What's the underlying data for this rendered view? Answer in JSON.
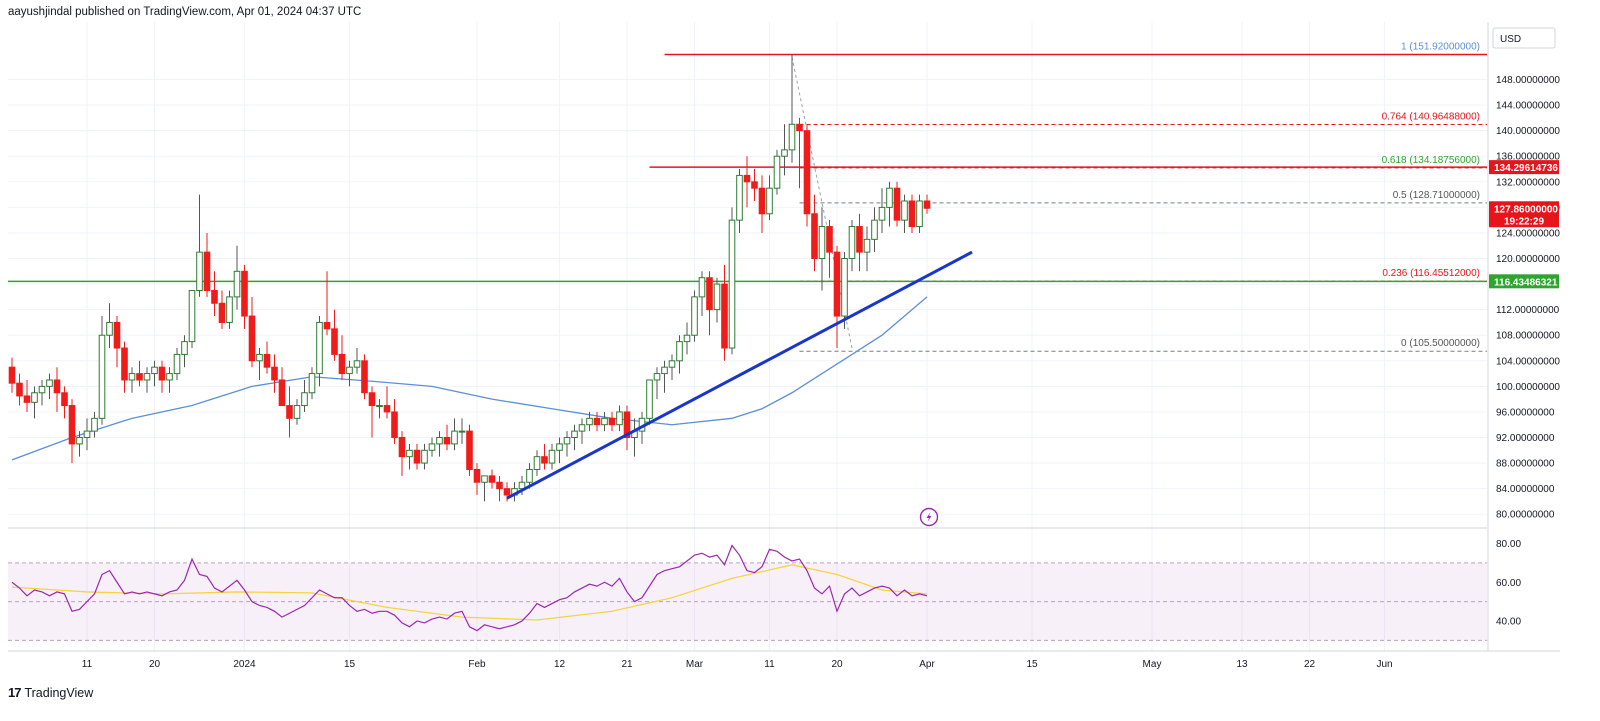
{
  "header": {
    "publisher_line": "aayushjindal published on TradingView.com, Apr 01, 2024 04:37 UTC"
  },
  "footer": {
    "brand": "TradingView",
    "logo_glyph": "17"
  },
  "colors": {
    "up": "#26a69a",
    "down": "#ef1c1c",
    "up_body": "#ffffff",
    "up_border": "#2e7d32",
    "ma": "#5b8fd9",
    "trendline": "#1a35cc",
    "support": "#2ea52e",
    "resistance": "#e8141c",
    "fib": "#e8141c",
    "rsi": "#9b27b0",
    "rsi_ma": "#f5d442",
    "rsi_band": "#9b27b0"
  },
  "price_axis": {
    "currency": "USD",
    "ticks": [
      "148.00000000",
      "144.00000000",
      "140.00000000",
      "136.00000000",
      "132.00000000",
      "128.00000000",
      "124.00000000",
      "120.00000000",
      "116.00000000",
      "112.00000000",
      "108.00000000",
      "104.00000000",
      "100.00000000",
      "96.00000000",
      "92.00000000",
      "88.00000000",
      "84.00000000",
      "80.00000000"
    ],
    "tags": [
      {
        "label": "134.29614736",
        "value": 134.29614736,
        "color": "#e8141c"
      },
      {
        "label": "127.86000000",
        "value": 127.86,
        "color": "#e8141c",
        "sub": "19:22:29"
      },
      {
        "label": "116.43486321",
        "value": 116.43486321,
        "color": "#2ea52e"
      }
    ]
  },
  "rsi_axis": {
    "ticks": [
      "80.00",
      "60.00",
      "40.00"
    ]
  },
  "time_axis": {
    "labels": [
      "11",
      "20",
      "2024",
      "15",
      "Feb",
      "12",
      "21",
      "Mar",
      "11",
      "20",
      "Apr",
      "15",
      "May",
      "13",
      "22",
      "Jun"
    ]
  },
  "chart_data": {
    "type": "candlestick",
    "price_range": [
      78,
      157
    ],
    "rsi_range": [
      25,
      87
    ],
    "dates": [
      "2023-12-01",
      "2023-12-02",
      "2023-12-03",
      "2023-12-04",
      "2023-12-05",
      "2023-12-06",
      "2023-12-07",
      "2023-12-08",
      "2023-12-09",
      "2023-12-10",
      "2023-12-11",
      "2023-12-12",
      "2023-12-13",
      "2023-12-14",
      "2023-12-15",
      "2023-12-16",
      "2023-12-17",
      "2023-12-18",
      "2023-12-19",
      "2023-12-20",
      "2023-12-21",
      "2023-12-22",
      "2023-12-23",
      "2023-12-24",
      "2023-12-25",
      "2023-12-26",
      "2023-12-27",
      "2023-12-28",
      "2023-12-29",
      "2023-12-30",
      "2023-12-31",
      "2024-01-01",
      "2024-01-02",
      "2024-01-03",
      "2024-01-04",
      "2024-01-05",
      "2024-01-06",
      "2024-01-07",
      "2024-01-08",
      "2024-01-09",
      "2024-01-10",
      "2024-01-11",
      "2024-01-12",
      "2024-01-13",
      "2024-01-14",
      "2024-01-15",
      "2024-01-16",
      "2024-01-17",
      "2024-01-18",
      "2024-01-19",
      "2024-01-20",
      "2024-01-21",
      "2024-01-22",
      "2024-01-23",
      "2024-01-24",
      "2024-01-25",
      "2024-01-26",
      "2024-01-27",
      "2024-01-28",
      "2024-01-29",
      "2024-01-30",
      "2024-01-31",
      "2024-02-01",
      "2024-02-02",
      "2024-02-03",
      "2024-02-04",
      "2024-02-05",
      "2024-02-06",
      "2024-02-07",
      "2024-02-08",
      "2024-02-09",
      "2024-02-10",
      "2024-02-11",
      "2024-02-12",
      "2024-02-13",
      "2024-02-14",
      "2024-02-15",
      "2024-02-16",
      "2024-02-17",
      "2024-02-18",
      "2024-02-19",
      "2024-02-20",
      "2024-02-21",
      "2024-02-22",
      "2024-02-23",
      "2024-02-24",
      "2024-02-25",
      "2024-02-26",
      "2024-02-27",
      "2024-02-28",
      "2024-02-29",
      "2024-03-01",
      "2024-03-02",
      "2024-03-03",
      "2024-03-04",
      "2024-03-05",
      "2024-03-06",
      "2024-03-07",
      "2024-03-08",
      "2024-03-09",
      "2024-03-10",
      "2024-03-11",
      "2024-03-12",
      "2024-03-13",
      "2024-03-14",
      "2024-03-15",
      "2024-03-16",
      "2024-03-17",
      "2024-03-18",
      "2024-03-19",
      "2024-03-20",
      "2024-03-21",
      "2024-03-22",
      "2024-03-23",
      "2024-03-24",
      "2024-03-25",
      "2024-03-26",
      "2024-03-27",
      "2024-03-28",
      "2024-03-29",
      "2024-03-30",
      "2024-03-31",
      "2024-04-01"
    ],
    "candles": [
      [
        103,
        104.5,
        99,
        100.5
      ],
      [
        100.5,
        102,
        97,
        98.5
      ],
      [
        98.5,
        101,
        96,
        97.5
      ],
      [
        97.5,
        100,
        95,
        99
      ],
      [
        99,
        101,
        97,
        100
      ],
      [
        100,
        102,
        98,
        101
      ],
      [
        101,
        103,
        96,
        99
      ],
      [
        99,
        100,
        95,
        97
      ],
      [
        97,
        98,
        88,
        91
      ],
      [
        91,
        93,
        89,
        92
      ],
      [
        92,
        95,
        90,
        93
      ],
      [
        93,
        96,
        92,
        95
      ],
      [
        95,
        111,
        94,
        108
      ],
      [
        108,
        113,
        106,
        110
      ],
      [
        110,
        111,
        103,
        106
      ],
      [
        106,
        107,
        99,
        101
      ],
      [
        101,
        103,
        99,
        102
      ],
      [
        102,
        104,
        100,
        101
      ],
      [
        101,
        103,
        99,
        102
      ],
      [
        102,
        104,
        100,
        103
      ],
      [
        103,
        104,
        99,
        101
      ],
      [
        101,
        103,
        99,
        102
      ],
      [
        102,
        106,
        101,
        105
      ],
      [
        105,
        108,
        103,
        107
      ],
      [
        107,
        115,
        106,
        115
      ],
      [
        115,
        130,
        114,
        121
      ],
      [
        121,
        124,
        114,
        115
      ],
      [
        115,
        118,
        111,
        113
      ],
      [
        113,
        115,
        109,
        110
      ],
      [
        110,
        115,
        109,
        114
      ],
      [
        114,
        122,
        112,
        118
      ],
      [
        118,
        119,
        109,
        111
      ],
      [
        111,
        114,
        103,
        104
      ],
      [
        104,
        106,
        101,
        105
      ],
      [
        105,
        107,
        102,
        103
      ],
      [
        103,
        105,
        99,
        101
      ],
      [
        101,
        103,
        97,
        97
      ],
      [
        97,
        100,
        92,
        95
      ],
      [
        95,
        98,
        94,
        97
      ],
      [
        97,
        101,
        96,
        99
      ],
      [
        99,
        103,
        98,
        102
      ],
      [
        102,
        111,
        100,
        110
      ],
      [
        110,
        118,
        108,
        109
      ],
      [
        109,
        112,
        104,
        105
      ],
      [
        105,
        108,
        101,
        102
      ],
      [
        102,
        104,
        100,
        103
      ],
      [
        103,
        106,
        102,
        104
      ],
      [
        104,
        105,
        98,
        99
      ],
      [
        99,
        100,
        92,
        97
      ],
      [
        97,
        98,
        95,
        97
      ],
      [
        97,
        100,
        95,
        96
      ],
      [
        96,
        98,
        91,
        92
      ],
      [
        92,
        93,
        86,
        89
      ],
      [
        89,
        91,
        87,
        90
      ],
      [
        90,
        91,
        87,
        88
      ],
      [
        88,
        91,
        87,
        90
      ],
      [
        90,
        92,
        89,
        91
      ],
      [
        91,
        93,
        89,
        92
      ],
      [
        92,
        94,
        90,
        91
      ],
      [
        91,
        95,
        90,
        93
      ],
      [
        93,
        95,
        91,
        93
      ],
      [
        93,
        94,
        86,
        87
      ],
      [
        87,
        88,
        83,
        85
      ],
      [
        85,
        86,
        82,
        86
      ],
      [
        86,
        87,
        84,
        85
      ],
      [
        85,
        86,
        82,
        84
      ],
      [
        84,
        85,
        82,
        83
      ],
      [
        83,
        85,
        82,
        84
      ],
      [
        84,
        86,
        83,
        85
      ],
      [
        85,
        88,
        84,
        87
      ],
      [
        87,
        90,
        86,
        89
      ],
      [
        89,
        91,
        87,
        88
      ],
      [
        88,
        91,
        87,
        90
      ],
      [
        90,
        92,
        88,
        91
      ],
      [
        91,
        93,
        89,
        92
      ],
      [
        92,
        94,
        90,
        93
      ],
      [
        93,
        95,
        91,
        94
      ],
      [
        94,
        96,
        93,
        95
      ],
      [
        95,
        96,
        93,
        94
      ],
      [
        94,
        96,
        93,
        95
      ],
      [
        95,
        96,
        93,
        94
      ],
      [
        94,
        97,
        93,
        96
      ],
      [
        96,
        97,
        90,
        92
      ],
      [
        92,
        95,
        89,
        93
      ],
      [
        93,
        96,
        91,
        95
      ],
      [
        95,
        101,
        94,
        101
      ],
      [
        101,
        103,
        98,
        102
      ],
      [
        102,
        104,
        99,
        103
      ],
      [
        103,
        105,
        101,
        104
      ],
      [
        104,
        108,
        102,
        107
      ],
      [
        107,
        110,
        105,
        108
      ],
      [
        108,
        115,
        107,
        114
      ],
      [
        114,
        118,
        111,
        117
      ],
      [
        117,
        118,
        108,
        112
      ],
      [
        112,
        117,
        110,
        116
      ],
      [
        116,
        119,
        104,
        106
      ],
      [
        106,
        128,
        105,
        126
      ],
      [
        126,
        134,
        124,
        133
      ],
      [
        133,
        136,
        128,
        132
      ],
      [
        132,
        134,
        129,
        131
      ],
      [
        131,
        133,
        124,
        127
      ],
      [
        127,
        133,
        126,
        131
      ],
      [
        131,
        137,
        130,
        136
      ],
      [
        136,
        141,
        133,
        137
      ],
      [
        137,
        152,
        135,
        141
      ],
      [
        141,
        142,
        131,
        140
      ],
      [
        140,
        141,
        125,
        127
      ],
      [
        127,
        130,
        118,
        120
      ],
      [
        120,
        128,
        115,
        125
      ],
      [
        125,
        126,
        117,
        121
      ],
      [
        121,
        122,
        106,
        111
      ],
      [
        111,
        121,
        109,
        120
      ],
      [
        120,
        126,
        118,
        125
      ],
      [
        125,
        127,
        118,
        121
      ],
      [
        121,
        125,
        118,
        123
      ],
      [
        123,
        128,
        121,
        126
      ],
      [
        126,
        131,
        124,
        128
      ],
      [
        128,
        132,
        125,
        131
      ],
      [
        131,
        132,
        125,
        126
      ],
      [
        126,
        130,
        124,
        129
      ],
      [
        129,
        130,
        124,
        125
      ],
      [
        125,
        130,
        124,
        129
      ],
      [
        129,
        130,
        127,
        127.86
      ]
    ],
    "ma": [
      [
        0,
        88.5
      ],
      [
        8,
        92
      ],
      [
        16,
        95
      ],
      [
        24,
        97
      ],
      [
        32,
        100
      ],
      [
        40,
        101.5
      ],
      [
        48,
        100.8
      ],
      [
        56,
        100
      ],
      [
        64,
        98
      ],
      [
        72,
        96.5
      ],
      [
        80,
        95
      ],
      [
        88,
        94
      ],
      [
        96,
        95
      ],
      [
        100,
        96.5
      ],
      [
        104,
        99
      ],
      [
        108,
        102
      ],
      [
        112,
        105
      ],
      [
        116,
        108
      ],
      [
        120,
        112
      ],
      [
        122,
        114
      ]
    ],
    "rsi": [
      60,
      57,
      53,
      56,
      55,
      53,
      55,
      54,
      45,
      46,
      50,
      54,
      64,
      66,
      60,
      54,
      55,
      54,
      55,
      54,
      53,
      55,
      56,
      61,
      72,
      64,
      63,
      57,
      55,
      58,
      61,
      56,
      50,
      48,
      47,
      45,
      42,
      44,
      46,
      48,
      52,
      56,
      54,
      52,
      52,
      48,
      45,
      46,
      44,
      45,
      45,
      43,
      39,
      37,
      40,
      39,
      41,
      42,
      41,
      44,
      45,
      37,
      35,
      38,
      37,
      36,
      37,
      38,
      40,
      44,
      49,
      47,
      49,
      51,
      52,
      55,
      57,
      59,
      58,
      60,
      58,
      62,
      55,
      50,
      52,
      58,
      64,
      66,
      67,
      68,
      71,
      74,
      75,
      73,
      74,
      69,
      79,
      74,
      66,
      65,
      68,
      77,
      76,
      73,
      71,
      72,
      66,
      57,
      54,
      58,
      45,
      54,
      57,
      53,
      55,
      57,
      58,
      57,
      53,
      56,
      53,
      54,
      53
    ],
    "rsi_ma": [
      [
        0,
        57.5
      ],
      [
        10,
        55
      ],
      [
        20,
        54
      ],
      [
        30,
        55
      ],
      [
        40,
        54.5
      ],
      [
        50,
        47
      ],
      [
        60,
        42
      ],
      [
        70,
        40.5
      ],
      [
        80,
        45
      ],
      [
        88,
        52
      ],
      [
        96,
        62
      ],
      [
        104,
        69
      ],
      [
        110,
        64
      ],
      [
        116,
        56
      ],
      [
        122,
        54
      ]
    ],
    "lines": {
      "trendline": {
        "from": [
          "2024-02-05",
          82.5
        ],
        "to": [
          "2024-04-07",
          121
        ]
      },
      "support": 116.43,
      "resistance_top": 151.92,
      "resistance_mid": 134.29
    },
    "fib": [
      {
        "ratio": "1",
        "value": 151.92,
        "label": "1 (151.92000000)"
      },
      {
        "ratio": "0.764",
        "value": 140.96488,
        "label": "0.764 (140.96488000)"
      },
      {
        "ratio": "0.618",
        "value": 134.18756,
        "label": "0.618 (134.18756000)"
      },
      {
        "ratio": "0.5",
        "value": 128.71,
        "label": "0.5 (128.71000000)"
      },
      {
        "ratio": "0.236",
        "value": 116.45512,
        "label": "0.236 (116.45512000)"
      },
      {
        "ratio": "0",
        "value": 105.5,
        "label": "0 (105.50000000)"
      }
    ]
  }
}
